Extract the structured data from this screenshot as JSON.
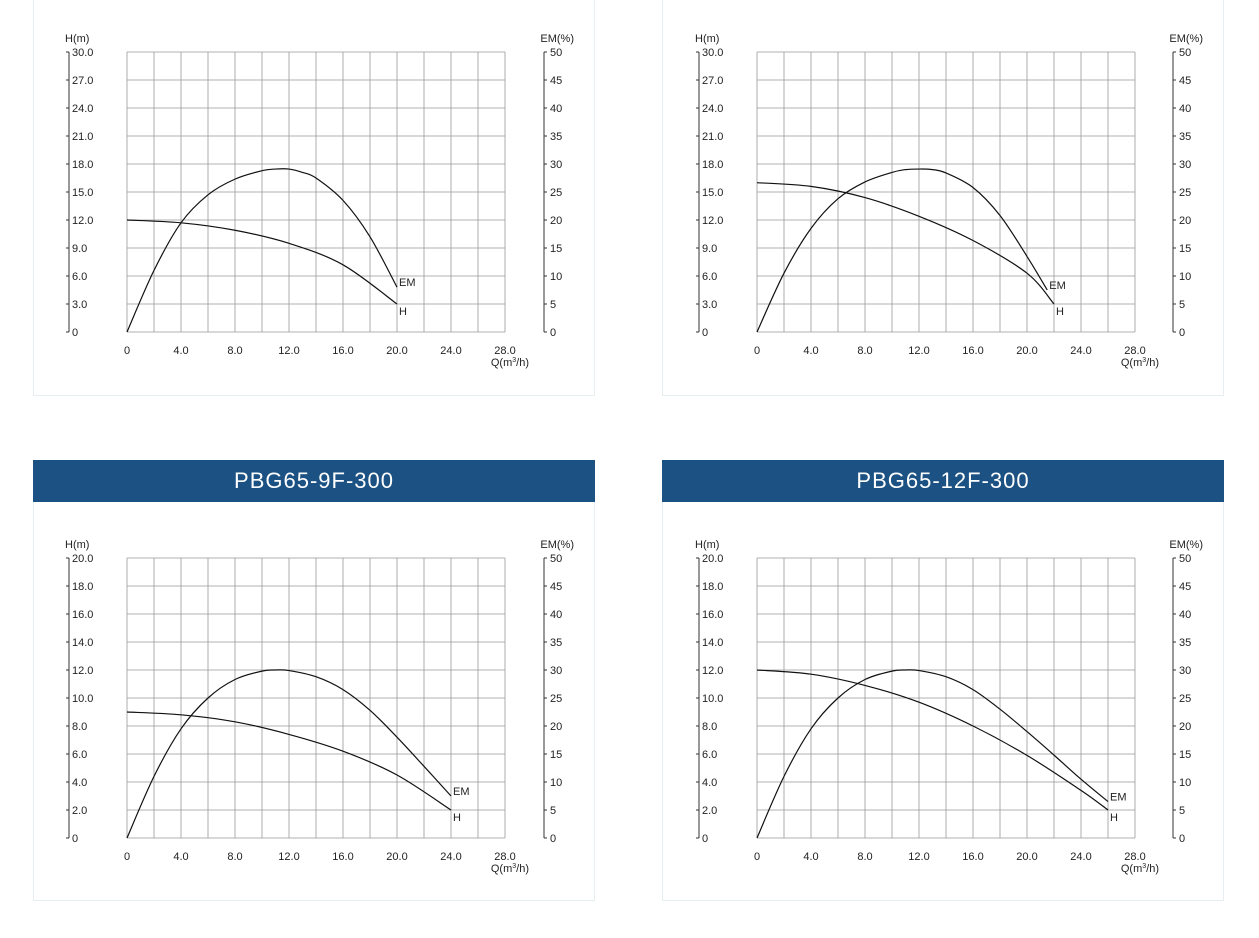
{
  "colors": {
    "header_bg": "#1b5283",
    "header_text": "#ffffff",
    "grid": "#999999",
    "curve": "#111111",
    "axis_text": "#222222"
  },
  "chart_data": [
    {
      "type": "line",
      "title": "",
      "left_axis_label": "H(m)",
      "right_axis_label": "EM(%)",
      "x_label_main": "Q(m",
      "x_label_sup": "3",
      "x_label_tail": "/h)",
      "x_range": [
        0,
        28
      ],
      "x_ticks": [
        "0",
        "4.0",
        "8.0",
        "12.0",
        "16.0",
        "20.0",
        "24.0",
        "28.0"
      ],
      "h_range": [
        0,
        30
      ],
      "h_ticks": [
        "0",
        "3.0",
        "6.0",
        "9.0",
        "12.0",
        "15.0",
        "18.0",
        "21.0",
        "24.0",
        "27.0",
        "30.0"
      ],
      "em_range": [
        0,
        50
      ],
      "em_ticks": [
        "0",
        "5",
        "10",
        "15",
        "20",
        "25",
        "30",
        "35",
        "40",
        "45",
        "50"
      ],
      "grid": true,
      "series": [
        {
          "name": "H",
          "axis": "left",
          "x": [
            0,
            4,
            8,
            12,
            16,
            20
          ],
          "y": [
            12.0,
            11.7,
            10.9,
            9.5,
            7.2,
            3.0
          ]
        },
        {
          "name": "EM",
          "axis": "right",
          "x": [
            0,
            2,
            4,
            6,
            8,
            10,
            11,
            12,
            13,
            14,
            16,
            18,
            20
          ],
          "y": [
            0,
            11,
            19.5,
            24.5,
            27.3,
            28.8,
            29.1,
            29.1,
            28.5,
            27.5,
            23.5,
            17,
            8
          ]
        }
      ]
    },
    {
      "type": "line",
      "title": "",
      "left_axis_label": "H(m)",
      "right_axis_label": "EM(%)",
      "x_label_main": "Q(m",
      "x_label_sup": "3",
      "x_label_tail": "/h)",
      "x_range": [
        0,
        28
      ],
      "x_ticks": [
        "0",
        "4.0",
        "8.0",
        "12.0",
        "16.0",
        "20.0",
        "24.0",
        "28.0"
      ],
      "h_range": [
        0,
        30
      ],
      "h_ticks": [
        "0",
        "3.0",
        "6.0",
        "9.0",
        "12.0",
        "15.0",
        "18.0",
        "21.0",
        "24.0",
        "27.0",
        "30.0"
      ],
      "em_range": [
        0,
        50
      ],
      "em_ticks": [
        "0",
        "5",
        "10",
        "15",
        "20",
        "25",
        "30",
        "35",
        "40",
        "45",
        "50"
      ],
      "grid": true,
      "series": [
        {
          "name": "H",
          "axis": "left",
          "x": [
            0,
            4,
            8,
            12,
            16,
            20,
            22
          ],
          "y": [
            16.0,
            15.6,
            14.4,
            12.4,
            9.8,
            6.3,
            3.0
          ]
        },
        {
          "name": "EM",
          "axis": "right",
          "x": [
            0,
            2,
            4,
            6,
            8,
            10,
            11,
            12,
            13,
            14,
            16,
            18,
            20,
            21.5
          ],
          "y": [
            0,
            10.5,
            18.5,
            23.8,
            26.8,
            28.5,
            29,
            29.1,
            29,
            28.4,
            25.8,
            20.8,
            13.5,
            7.5
          ]
        }
      ]
    },
    {
      "type": "line",
      "title": "PBG65-9F-300",
      "left_axis_label": "H(m)",
      "right_axis_label": "EM(%)",
      "x_label_main": "Q(m",
      "x_label_sup": "3",
      "x_label_tail": "/h)",
      "x_range": [
        0,
        28
      ],
      "x_ticks": [
        "0",
        "4.0",
        "8.0",
        "12.0",
        "16.0",
        "20.0",
        "24.0",
        "28.0"
      ],
      "h_range": [
        0,
        20
      ],
      "h_ticks": [
        "0",
        "2.0",
        "4.0",
        "6.0",
        "8.0",
        "10.0",
        "12.0",
        "14.0",
        "16.0",
        "18.0",
        "20.0"
      ],
      "em_range": [
        0,
        50
      ],
      "em_ticks": [
        "0",
        "5",
        "10",
        "15",
        "20",
        "25",
        "30",
        "35",
        "40",
        "45",
        "50"
      ],
      "grid": true,
      "series": [
        {
          "name": "H",
          "axis": "left",
          "x": [
            0,
            4,
            8,
            12,
            16,
            20,
            24
          ],
          "y": [
            9.0,
            8.8,
            8.3,
            7.4,
            6.2,
            4.5,
            2.0
          ]
        },
        {
          "name": "EM",
          "axis": "right",
          "x": [
            0,
            2,
            4,
            6,
            8,
            10,
            11,
            12,
            14,
            16,
            18,
            20,
            22,
            24
          ],
          "y": [
            0,
            11,
            19.5,
            25,
            28.3,
            29.8,
            30,
            29.9,
            28.8,
            26.5,
            22.8,
            18,
            12.8,
            7.5
          ]
        }
      ]
    },
    {
      "type": "line",
      "title": "PBG65-12F-300",
      "left_axis_label": "H(m)",
      "right_axis_label": "EM(%)",
      "x_label_main": "Q(m",
      "x_label_sup": "3",
      "x_label_tail": "/h)",
      "x_range": [
        0,
        28
      ],
      "x_ticks": [
        "0",
        "4.0",
        "8.0",
        "12.0",
        "16.0",
        "20.0",
        "24.0",
        "28.0"
      ],
      "h_range": [
        0,
        20
      ],
      "h_ticks": [
        "0",
        "2.0",
        "4.0",
        "6.0",
        "8.0",
        "10.0",
        "12.0",
        "14.0",
        "16.0",
        "18.0",
        "20.0"
      ],
      "em_range": [
        0,
        50
      ],
      "em_ticks": [
        "0",
        "5",
        "10",
        "15",
        "20",
        "25",
        "30",
        "35",
        "40",
        "45",
        "50"
      ],
      "grid": true,
      "series": [
        {
          "name": "H",
          "axis": "left",
          "x": [
            0,
            4,
            8,
            12,
            16,
            20,
            24,
            26
          ],
          "y": [
            12.0,
            11.7,
            10.9,
            9.7,
            8.0,
            5.9,
            3.4,
            2.0
          ]
        },
        {
          "name": "EM",
          "axis": "right",
          "x": [
            0,
            2,
            4,
            6,
            8,
            10,
            11,
            12,
            14,
            16,
            18,
            20,
            22,
            24,
            26
          ],
          "y": [
            0,
            11,
            19.5,
            25,
            28.3,
            29.8,
            30,
            29.9,
            28.8,
            26.5,
            23,
            19,
            14.8,
            10.5,
            6.5
          ]
        }
      ]
    }
  ]
}
